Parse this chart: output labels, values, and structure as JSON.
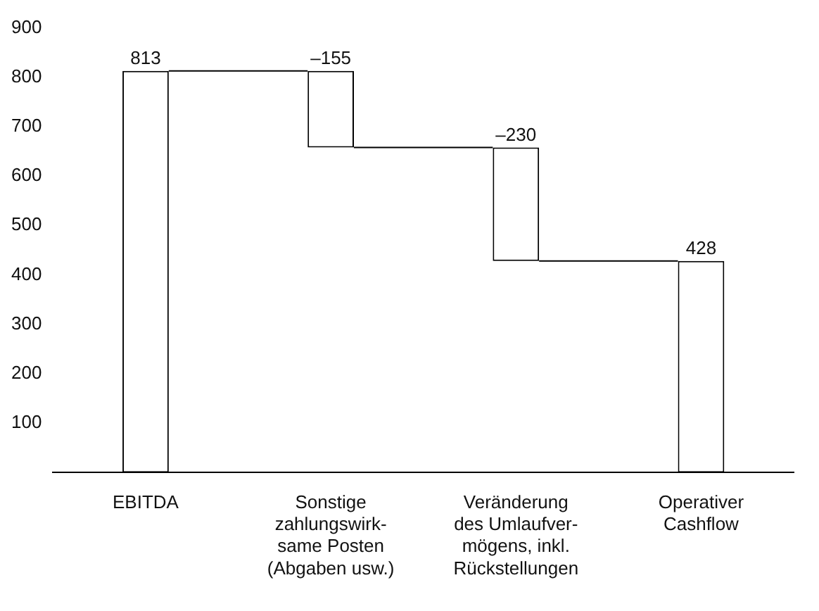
{
  "chart_data": {
    "type": "bar",
    "categories": [
      "EBITDA",
      "Sonstige\nzahlungswirk-\nsame Posten\n(Abgaben usw.)",
      "Veränderung\ndes Umlaufver-\nmögens, inkl.\nRückstellungen",
      "Operativer\nCashflow"
    ],
    "values": [
      813,
      -155,
      -230,
      428
    ],
    "base": [
      0,
      813,
      658,
      0
    ],
    "value_labels": [
      "813",
      "–155",
      "–230",
      "428"
    ],
    "color": "#ffffff",
    "ylim": [
      0,
      900
    ],
    "yticks": [
      100,
      200,
      300,
      400,
      500,
      600,
      700,
      800,
      900
    ],
    "grid": false,
    "legend": false
  }
}
